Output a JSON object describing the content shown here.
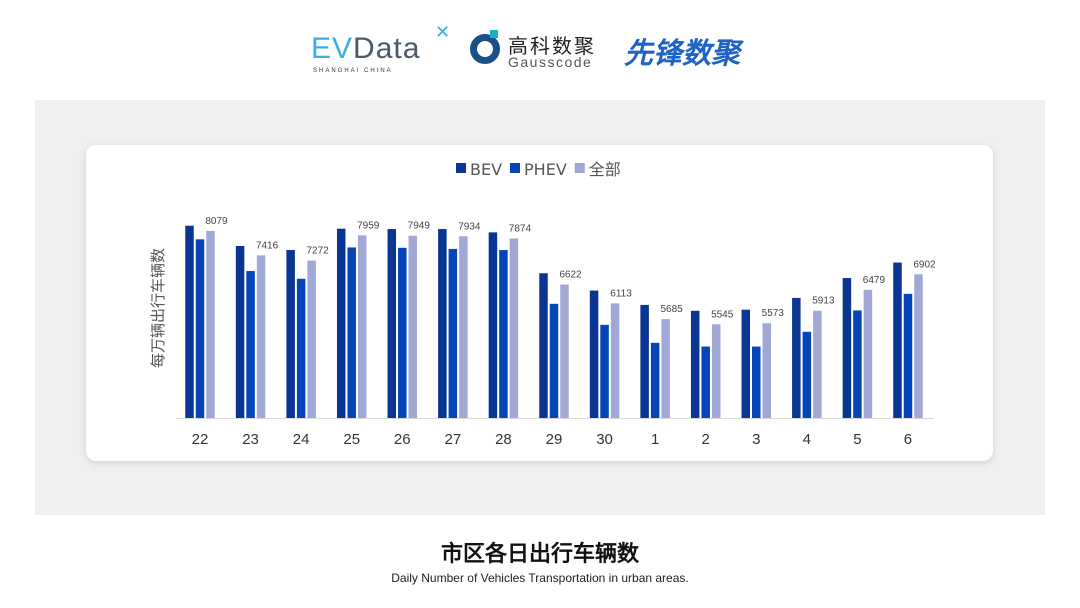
{
  "logos": {
    "evdata": {
      "ev": "EV",
      "rest": "Data",
      "sub": "SHANGHAI CHINA"
    },
    "gausscode": {
      "cn": "高科数聚",
      "en": "Gausscode"
    },
    "xianfeng": "先锋数聚"
  },
  "footer": {
    "title": "市区各日出行车辆数",
    "subtitle": "Daily Number of Vehicles Transportation in urban areas."
  },
  "chart_data": {
    "type": "bar",
    "title": "",
    "xlabel": "",
    "ylabel": "每万辆出行车辆数",
    "ylim": [
      3000,
      9000
    ],
    "grid": false,
    "legend": "top-center",
    "categories": [
      "22",
      "23",
      "24",
      "25",
      "26",
      "27",
      "28",
      "29",
      "30",
      "1",
      "2",
      "3",
      "4",
      "5",
      "6"
    ],
    "series": [
      {
        "name": "BEV",
        "color": "#0b3593",
        "values": [
          8220,
          7670,
          7560,
          8140,
          8130,
          8130,
          8040,
          6930,
          6460,
          6070,
          5910,
          5940,
          6260,
          6800,
          7220
        ],
        "labeled": false
      },
      {
        "name": "PHEV",
        "color": "#0545b8",
        "values": [
          7850,
          6990,
          6780,
          7630,
          7620,
          7590,
          7560,
          6100,
          5530,
          5040,
          4940,
          4940,
          5340,
          5920,
          6370
        ],
        "labeled": false
      },
      {
        "name": "全部",
        "color": "#a2a8d6",
        "values": [
          8079,
          7416,
          7272,
          7959,
          7949,
          7934,
          7874,
          6622,
          6113,
          5685,
          5545,
          5573,
          5913,
          6479,
          6902
        ],
        "labeled": true
      }
    ]
  }
}
